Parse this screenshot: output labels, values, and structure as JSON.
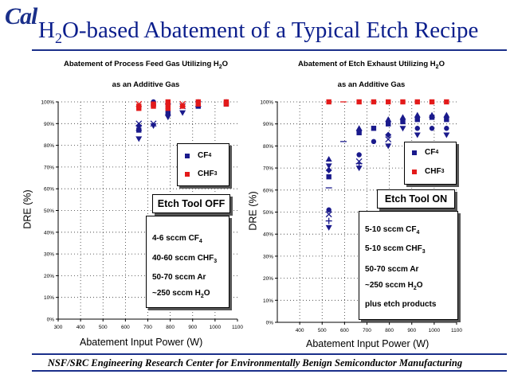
{
  "header": {
    "logo": "Cal",
    "title_pre": "H",
    "title_sub": "2",
    "title_post": "O-based Abatement of a Typical Etch Recipe"
  },
  "footer": "NSF/SRC Engineering Research Center for Environmentally Benign Semiconductor Manufacturing",
  "colors": {
    "cf4": "#1a1a8c",
    "chf3": "#e31a1a",
    "navy": "#1a2f8a"
  },
  "chart_data": [
    {
      "type": "scatter",
      "title_line1": "Abatement of Process Feed Gas Utilizing H",
      "title_line1_sub": "2",
      "title_line1_post": "O",
      "title_line2": "as an Additive Gas",
      "xlabel": "Abatement Input Power (W)",
      "ylabel": "DRE (%)",
      "xlim": [
        300,
        1100
      ],
      "ylim": [
        0,
        100
      ],
      "xticks": [
        "300",
        "400",
        "500",
        "600",
        "700",
        "800",
        "900",
        "1000",
        "1100"
      ],
      "yticks": [
        "0%",
        "10%",
        "20%",
        "30%",
        "40%",
        "50%",
        "60%",
        "70%",
        "80%",
        "90%",
        "100%"
      ],
      "legend": [
        {
          "name": "CF",
          "sub": "4",
          "color": "#1a1a8c"
        },
        {
          "name": "CHF",
          "sub": "3",
          "color": "#e31a1a"
        }
      ],
      "tool_label": "Etch Tool OFF",
      "conditions": [
        {
          "pre": "4-6 sccm CF",
          "sub": "4",
          "post": ""
        },
        {
          "pre": "40-60 sccm CHF",
          "sub": "3",
          "post": ""
        },
        {
          "pre": "50-70 sccm Ar",
          "sub": "",
          "post": ""
        },
        {
          "pre": "~250 sccm H",
          "sub": "2",
          "post": "O"
        }
      ],
      "series": [
        {
          "name": "CF4",
          "color": "#1a1a8c",
          "points": [
            {
              "x": 660,
              "y": 83,
              "m": "dtri"
            },
            {
              "x": 660,
              "y": 88,
              "m": "x"
            },
            {
              "x": 660,
              "y": 87,
              "m": "sq"
            },
            {
              "x": 660,
              "y": 89,
              "m": "dia"
            },
            {
              "x": 660,
              "y": 90,
              "m": "x"
            },
            {
              "x": 725,
              "y": 89,
              "m": "dtri"
            },
            {
              "x": 725,
              "y": 90,
              "m": "x"
            },
            {
              "x": 725,
              "y": 99,
              "m": "sq"
            },
            {
              "x": 725,
              "y": 100,
              "m": "circ"
            },
            {
              "x": 790,
              "y": 93,
              "m": "dtri"
            },
            {
              "x": 790,
              "y": 95,
              "m": "sq"
            },
            {
              "x": 790,
              "y": 97,
              "m": "circ"
            },
            {
              "x": 790,
              "y": 99,
              "m": "dia"
            },
            {
              "x": 855,
              "y": 95,
              "m": "dtri"
            },
            {
              "x": 855,
              "y": 98,
              "m": "x"
            },
            {
              "x": 925,
              "y": 98,
              "m": "sq"
            },
            {
              "x": 925,
              "y": 99,
              "m": "x"
            },
            {
              "x": 925,
              "y": 100,
              "m": "circ"
            },
            {
              "x": 1050,
              "y": 99,
              "m": "sq"
            },
            {
              "x": 1050,
              "y": 100,
              "m": "circ"
            }
          ]
        },
        {
          "name": "CHF3",
          "color": "#e31a1a",
          "points": [
            {
              "x": 660,
              "y": 97,
              "m": "sq"
            },
            {
              "x": 660,
              "y": 98,
              "m": "sq"
            },
            {
              "x": 660,
              "y": 99,
              "m": "x"
            },
            {
              "x": 725,
              "y": 98,
              "m": "sq"
            },
            {
              "x": 725,
              "y": 99,
              "m": "sq"
            },
            {
              "x": 790,
              "y": 97,
              "m": "sq"
            },
            {
              "x": 790,
              "y": 99,
              "m": "sq"
            },
            {
              "x": 790,
              "y": 100,
              "m": "sq"
            },
            {
              "x": 855,
              "y": 98,
              "m": "sq"
            },
            {
              "x": 855,
              "y": 99,
              "m": "x"
            },
            {
              "x": 925,
              "y": 99,
              "m": "sq"
            },
            {
              "x": 925,
              "y": 100,
              "m": "sq"
            },
            {
              "x": 1050,
              "y": 99,
              "m": "sq"
            },
            {
              "x": 1050,
              "y": 100,
              "m": "sq"
            }
          ]
        }
      ]
    },
    {
      "type": "scatter",
      "title_line1": "Abatement of Etch Exhaust Utilizing H",
      "title_line1_sub": "2",
      "title_line1_post": "O",
      "title_line2": "as an Additive Gas",
      "xlabel": "Abatement Input Power (W)",
      "ylabel": "DRE (%)",
      "xlim": [
        300,
        1100
      ],
      "ylim": [
        0,
        100
      ],
      "xticks": [
        "400",
        "500",
        "600",
        "700",
        "800",
        "900",
        "1000",
        "1100"
      ],
      "yticks": [
        "0%",
        "10%",
        "20%",
        "30%",
        "40%",
        "50%",
        "60%",
        "70%",
        "80%",
        "90%",
        "100%"
      ],
      "legend": [
        {
          "name": "CF",
          "sub": "4",
          "color": "#1a1a8c"
        },
        {
          "name": "CHF",
          "sub": "3",
          "color": "#e31a1a"
        }
      ],
      "tool_label": "Etch Tool ON",
      "conditions": [
        {
          "pre": "5-10 sccm CF",
          "sub": "4",
          "post": ""
        },
        {
          "pre": "5-10 sccm CHF",
          "sub": "3",
          "post": ""
        },
        {
          "pre": "50-70 sccm Ar",
          "sub": "",
          "post": ""
        },
        {
          "pre": "~250 sccm H",
          "sub": "2",
          "post": "O"
        },
        {
          "pre": "plus etch products",
          "sub": "",
          "post": ""
        }
      ],
      "series": [
        {
          "name": "CF4",
          "color": "#1a1a8c",
          "points": [
            {
              "x": 530,
              "y": 43,
              "m": "dtri"
            },
            {
              "x": 530,
              "y": 46,
              "m": "plus"
            },
            {
              "x": 530,
              "y": 49,
              "m": "x"
            },
            {
              "x": 530,
              "y": 51,
              "m": "circ"
            },
            {
              "x": 530,
              "y": 61,
              "m": "dash"
            },
            {
              "x": 530,
              "y": 66,
              "m": "sq"
            },
            {
              "x": 530,
              "y": 69,
              "m": "dia"
            },
            {
              "x": 530,
              "y": 71,
              "m": "dtri"
            },
            {
              "x": 530,
              "y": 74,
              "m": "tri"
            },
            {
              "x": 595,
              "y": 82,
              "m": "dash"
            },
            {
              "x": 665,
              "y": 70,
              "m": "dtri"
            },
            {
              "x": 665,
              "y": 72,
              "m": "plus"
            },
            {
              "x": 665,
              "y": 73,
              "m": "x"
            },
            {
              "x": 665,
              "y": 76,
              "m": "circ"
            },
            {
              "x": 665,
              "y": 86,
              "m": "sq"
            },
            {
              "x": 665,
              "y": 87,
              "m": "dia"
            },
            {
              "x": 665,
              "y": 88,
              "m": "tri"
            },
            {
              "x": 730,
              "y": 82,
              "m": "circ"
            },
            {
              "x": 730,
              "y": 88,
              "m": "sq"
            },
            {
              "x": 795,
              "y": 80,
              "m": "dtri"
            },
            {
              "x": 795,
              "y": 83,
              "m": "x"
            },
            {
              "x": 795,
              "y": 85,
              "m": "dia"
            },
            {
              "x": 795,
              "y": 90,
              "m": "sq"
            },
            {
              "x": 795,
              "y": 92,
              "m": "tri"
            },
            {
              "x": 860,
              "y": 88,
              "m": "dtri"
            },
            {
              "x": 860,
              "y": 91,
              "m": "sq"
            },
            {
              "x": 860,
              "y": 93,
              "m": "tri"
            },
            {
              "x": 925,
              "y": 85,
              "m": "dtri"
            },
            {
              "x": 925,
              "y": 88,
              "m": "circ"
            },
            {
              "x": 925,
              "y": 92,
              "m": "sq"
            },
            {
              "x": 925,
              "y": 94,
              "m": "tri"
            },
            {
              "x": 990,
              "y": 88,
              "m": "circ"
            },
            {
              "x": 990,
              "y": 93,
              "m": "sq"
            },
            {
              "x": 990,
              "y": 94,
              "m": "tri"
            },
            {
              "x": 1055,
              "y": 85,
              "m": "dtri"
            },
            {
              "x": 1055,
              "y": 88,
              "m": "circ"
            },
            {
              "x": 1055,
              "y": 92,
              "m": "sq"
            },
            {
              "x": 1055,
              "y": 94,
              "m": "tri"
            }
          ]
        },
        {
          "name": "CHF3",
          "color": "#e31a1a",
          "points": [
            {
              "x": 530,
              "y": 100,
              "m": "sq"
            },
            {
              "x": 595,
              "y": 100,
              "m": "dash"
            },
            {
              "x": 665,
              "y": 100,
              "m": "sq"
            },
            {
              "x": 730,
              "y": 100,
              "m": "sq"
            },
            {
              "x": 795,
              "y": 100,
              "m": "sq"
            },
            {
              "x": 860,
              "y": 100,
              "m": "sq"
            },
            {
              "x": 925,
              "y": 100,
              "m": "sq"
            },
            {
              "x": 990,
              "y": 100,
              "m": "sq"
            },
            {
              "x": 1055,
              "y": 100,
              "m": "sq"
            }
          ]
        }
      ]
    }
  ]
}
